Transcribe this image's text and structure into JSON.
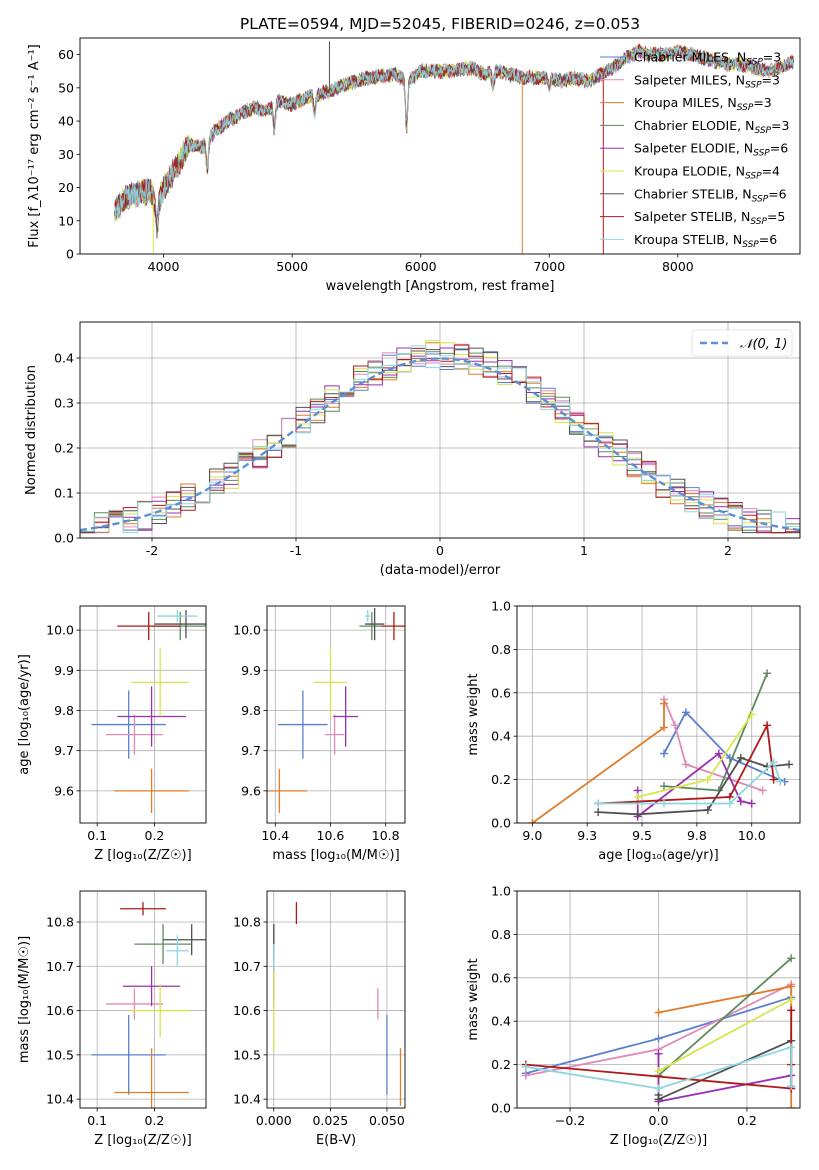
{
  "colors": {
    "Chabrier MILES": "#5a7fd0",
    "Salpeter MILES": "#e08ab8",
    "Kroupa MILES": "#e07d2a",
    "Chabrier ELODIE": "#5d8a5d",
    "Salpeter ELODIE": "#9a2fb0",
    "Kroupa ELODIE": "#d6e64a",
    "Chabrier STELIB": "#505050",
    "Salpeter STELIB": "#b01a1a",
    "Kroupa STELIB": "#8ed6e0"
  },
  "chart_data": [
    {
      "type": "line",
      "title": "PLATE=0594, MJD=52045, FIBERID=0246, z=0.053",
      "xlabel": "wavelength [Angstrom, rest frame]",
      "ylabel": "Flux [f_λ10⁻¹⁷ erg cm⁻² s⁻¹ A⁻¹]",
      "xlim": [
        3350,
        8950
      ],
      "ylim": [
        0,
        65
      ],
      "xticks": [
        4000,
        5000,
        6000,
        7000,
        8000
      ],
      "yticks": [
        0,
        10,
        20,
        30,
        40,
        50,
        60
      ],
      "legend_position": "right",
      "legend": [
        {
          "name": "Chabrier MILES",
          "nssp": "3"
        },
        {
          "name": "Salpeter MILES",
          "nssp": "3"
        },
        {
          "name": "Kroupa MILES",
          "nssp": "3"
        },
        {
          "name": "Chabrier ELODIE",
          "nssp": "3"
        },
        {
          "name": "Salpeter ELODIE",
          "nssp": "6"
        },
        {
          "name": "Kroupa ELODIE",
          "nssp": "4"
        },
        {
          "name": "Chabrier STELIB",
          "nssp": "6"
        },
        {
          "name": "Salpeter STELIB",
          "nssp": "5"
        },
        {
          "name": "Kroupa STELIB",
          "nssp": "6"
        }
      ],
      "spectrum_envelope": {
        "x": [
          3620,
          3700,
          3800,
          3900,
          3950,
          4000,
          4100,
          4200,
          4300,
          4400,
          4500,
          4700,
          4800,
          4900,
          5000,
          5100,
          5200,
          5300,
          5400,
          5600,
          5800,
          5900,
          6000,
          6200,
          6400,
          6500,
          6600,
          6700,
          6800,
          7000,
          7100,
          7200,
          7300,
          7400,
          7500,
          7600,
          7700,
          7800,
          7900,
          8000,
          8100,
          8200,
          8300,
          8400,
          8500,
          8600,
          8700,
          8800,
          8900
        ],
        "y": [
          13,
          17,
          18,
          19,
          14,
          20,
          26,
          33,
          32,
          37,
          40,
          44,
          43,
          46,
          45,
          47,
          48,
          49,
          51,
          53,
          54,
          52,
          55,
          55,
          56,
          54,
          55,
          54,
          53,
          53,
          52,
          53,
          52,
          54,
          56,
          59,
          61,
          60,
          60,
          61,
          60,
          59,
          58,
          57,
          57,
          56,
          55,
          56,
          58
        ]
      },
      "spikes": [
        {
          "x": 3920,
          "y": 0
        },
        {
          "x": 5290,
          "y": 64
        },
        {
          "x": 6790,
          "y": 0
        },
        {
          "x": 7420,
          "y": 0
        }
      ]
    },
    {
      "type": "area",
      "xlabel": "(data-model)/error",
      "ylabel": "Normed distribution",
      "xlim": [
        -2.5,
        2.5
      ],
      "ylim": [
        0,
        0.48
      ],
      "xticks": [
        -2,
        -1,
        0,
        1,
        2
      ],
      "yticks": [
        0.0,
        0.1,
        0.2,
        0.3,
        0.4
      ],
      "legend_label": "𝒩(0, 1)",
      "legend_position": "top-right",
      "bins": {
        "start": -2.5,
        "width": 0.1,
        "count": 50
      }
    },
    {
      "type": "scatter",
      "xlabel": "Z [log₁₀(Z/Z☉)]",
      "ylabel": "age  [log₁₀(age/yr)]",
      "xlim": [
        0.07,
        0.29
      ],
      "ylim": [
        9.52,
        10.06
      ],
      "xticks": [
        0.1,
        0.2
      ],
      "yticks": [
        9.6,
        9.7,
        9.8,
        9.9,
        10.0
      ],
      "points": [
        {
          "series": "Chabrier MILES",
          "x": 0.155,
          "y": 9.765,
          "xerr": 0.065,
          "yerr": 0.085
        },
        {
          "series": "Salpeter MILES",
          "x": 0.165,
          "y": 9.74,
          "xerr": 0.05,
          "yerr": 0.05
        },
        {
          "series": "Kroupa MILES",
          "x": 0.195,
          "y": 9.6,
          "xerr": 0.065,
          "yerr": 0.055
        },
        {
          "series": "Chabrier ELODIE",
          "x": 0.245,
          "y": 10.01,
          "xerr": 0.05,
          "yerr": 0.035
        },
        {
          "series": "Salpeter ELODIE",
          "x": 0.195,
          "y": 9.785,
          "xerr": 0.06,
          "yerr": 0.075
        },
        {
          "series": "Kroupa ELODIE",
          "x": 0.21,
          "y": 9.87,
          "xerr": 0.05,
          "yerr": 0.085
        },
        {
          "series": "Chabrier STELIB",
          "x": 0.255,
          "y": 10.015,
          "xerr": 0.055,
          "yerr": 0.035
        },
        {
          "series": "Salpeter STELIB",
          "x": 0.19,
          "y": 10.01,
          "xerr": 0.055,
          "yerr": 0.035
        },
        {
          "series": "Kroupa STELIB",
          "x": 0.24,
          "y": 10.035,
          "xerr": 0.035,
          "yerr": 0.015
        }
      ]
    },
    {
      "type": "scatter",
      "xlabel": "mass [log₁₀(M/M☉)]",
      "xlim": [
        10.37,
        10.87
      ],
      "ylim": [
        9.52,
        10.06
      ],
      "xticks": [
        10.4,
        10.6,
        10.8
      ],
      "yticks": [
        9.6,
        9.7,
        9.8,
        9.9,
        10.0
      ],
      "points": [
        {
          "series": "Chabrier MILES",
          "x": 10.5,
          "y": 9.765,
          "xerr": 0.09,
          "yerr": 0.085
        },
        {
          "series": "Salpeter MILES",
          "x": 10.615,
          "y": 9.74,
          "xerr": 0.035,
          "yerr": 0.05
        },
        {
          "series": "Kroupa MILES",
          "x": 10.415,
          "y": 9.6,
          "xerr": 0.1,
          "yerr": 0.055
        },
        {
          "series": "Chabrier ELODIE",
          "x": 10.75,
          "y": 10.01,
          "xerr": 0.045,
          "yerr": 0.035
        },
        {
          "series": "Salpeter ELODIE",
          "x": 10.655,
          "y": 9.785,
          "xerr": 0.045,
          "yerr": 0.075
        },
        {
          "series": "Kroupa ELODIE",
          "x": 10.6,
          "y": 9.87,
          "xerr": 0.06,
          "yerr": 0.085
        },
        {
          "series": "Chabrier STELIB",
          "x": 10.76,
          "y": 10.015,
          "xerr": 0.035,
          "yerr": 0.04
        },
        {
          "series": "Salpeter STELIB",
          "x": 10.83,
          "y": 10.01,
          "xerr": 0.045,
          "yerr": 0.035
        },
        {
          "series": "Kroupa STELIB",
          "x": 10.735,
          "y": 10.035,
          "xerr": 0.01,
          "yerr": 0.015
        }
      ]
    },
    {
      "type": "line",
      "xlabel": "age  [log₁₀(age/yr)]",
      "ylabel": "mass weight",
      "xlim": [
        8.93,
        10.22
      ],
      "ylim": [
        0,
        1
      ],
      "xticks": [
        9.0,
        9.25,
        9.5,
        9.75,
        10.0
      ],
      "yticks": [
        0.0,
        0.2,
        0.4,
        0.6,
        0.8,
        1.0
      ],
      "series": [
        {
          "name": "Chabrier MILES",
          "x": [
            9.6,
            9.7,
            9.9,
            10.15
          ],
          "y": [
            0.32,
            0.51,
            0.3,
            0.19
          ]
        },
        {
          "name": "Salpeter MILES",
          "x": [
            9.6,
            9.65,
            9.7,
            10.05
          ],
          "y": [
            0.57,
            0.45,
            0.27,
            0.15
          ]
        },
        {
          "name": "Kroupa MILES",
          "x": [
            9.0,
            9.6,
            9.6
          ],
          "y": [
            0.0,
            0.44,
            0.55
          ]
        },
        {
          "name": "Chabrier ELODIE",
          "x": [
            9.6,
            9.85,
            10.07
          ],
          "y": [
            0.17,
            0.15,
            0.69
          ]
        },
        {
          "name": "Salpeter ELODIE",
          "x": [
            9.48,
            9.48,
            9.85,
            9.95,
            10.0
          ],
          "y": [
            0.15,
            0.03,
            0.32,
            0.1,
            0.09
          ]
        },
        {
          "name": "Kroupa ELODIE",
          "x": [
            9.48,
            9.8,
            10.0
          ],
          "y": [
            0.12,
            0.2,
            0.5
          ]
        },
        {
          "name": "Chabrier STELIB",
          "x": [
            9.3,
            9.48,
            9.8,
            9.95,
            10.07,
            10.17
          ],
          "y": [
            0.05,
            0.04,
            0.06,
            0.3,
            0.26,
            0.27
          ]
        },
        {
          "name": "Salpeter STELIB",
          "x": [
            9.3,
            9.9,
            10.07,
            10.1
          ],
          "y": [
            0.09,
            0.12,
            0.45,
            0.2
          ]
        },
        {
          "name": "Kroupa STELIB",
          "x": [
            9.3,
            9.6,
            9.9,
            10.1,
            10.13
          ],
          "y": [
            0.09,
            0.09,
            0.09,
            0.28,
            0.19
          ]
        }
      ]
    },
    {
      "type": "scatter",
      "xlabel": "Z [log₁₀(Z/Z☉)]",
      "ylabel": "mass [log₁₀(M/M☉)]",
      "xlim": [
        0.07,
        0.29
      ],
      "ylim": [
        10.38,
        10.87
      ],
      "xticks": [
        0.1,
        0.2
      ],
      "yticks": [
        10.4,
        10.5,
        10.6,
        10.7,
        10.8
      ],
      "points": [
        {
          "series": "Chabrier MILES",
          "x": 0.155,
          "y": 10.5,
          "xerr": 0.065,
          "yerr": 0.09
        },
        {
          "series": "Salpeter MILES",
          "x": 0.165,
          "y": 10.615,
          "xerr": 0.05,
          "yerr": 0.035
        },
        {
          "series": "Kroupa MILES",
          "x": 0.195,
          "y": 10.415,
          "xerr": 0.065,
          "yerr": 0.1
        },
        {
          "series": "Chabrier ELODIE",
          "x": 0.215,
          "y": 10.75,
          "xerr": 0.05,
          "yerr": 0.045
        },
        {
          "series": "Salpeter ELODIE",
          "x": 0.195,
          "y": 10.655,
          "xerr": 0.05,
          "yerr": 0.045
        },
        {
          "series": "Kroupa ELODIE",
          "x": 0.21,
          "y": 10.6,
          "xerr": 0.05,
          "yerr": 0.06
        },
        {
          "series": "Chabrier STELIB",
          "x": 0.265,
          "y": 10.76,
          "xerr": 0.05,
          "yerr": 0.035
        },
        {
          "series": "Salpeter STELIB",
          "x": 0.18,
          "y": 10.83,
          "xerr": 0.04,
          "yerr": 0.015
        },
        {
          "series": "Kroupa STELIB",
          "x": 0.24,
          "y": 10.735,
          "xerr": 0.02,
          "yerr": 0.035
        }
      ]
    },
    {
      "type": "scatter",
      "xlabel": "E(B-V)",
      "xlim": [
        -0.003,
        0.058
      ],
      "ylim": [
        10.38,
        10.87
      ],
      "xticks": [
        0.0,
        0.025,
        0.05
      ],
      "xticklabels": [
        "0.000",
        "0.025",
        "0.050"
      ],
      "yticks": [
        10.4,
        10.5,
        10.6,
        10.7,
        10.8
      ],
      "points": [
        {
          "series": "Chabrier MILES",
          "x": 0.05,
          "y": 10.5,
          "xerr": 0,
          "yerr": 0.09
        },
        {
          "series": "Salpeter MILES",
          "x": 0.046,
          "y": 10.615,
          "xerr": 0,
          "yerr": 0.035
        },
        {
          "series": "Kroupa MILES",
          "x": 0.056,
          "y": 10.45,
          "xerr": 0,
          "yerr": 0.065
        },
        {
          "series": "Chabrier ELODIE",
          "x": 0.0,
          "y": 10.75,
          "xerr": 0,
          "yerr": 0.045
        },
        {
          "series": "Salpeter ELODIE",
          "x": 0.0,
          "y": 10.655,
          "xerr": 0,
          "yerr": 0.045
        },
        {
          "series": "Kroupa ELODIE",
          "x": 0.0,
          "y": 10.6,
          "xerr": 0,
          "yerr": 0.09
        },
        {
          "series": "Chabrier STELIB",
          "x": 0.0,
          "y": 10.76,
          "xerr": 0,
          "yerr": 0.035
        },
        {
          "series": "Salpeter STELIB",
          "x": 0.01,
          "y": 10.82,
          "xerr": 0,
          "yerr": 0.025
        },
        {
          "series": "Kroupa STELIB",
          "x": 0.0,
          "y": 10.72,
          "xerr": 0,
          "yerr": 0.03
        }
      ]
    },
    {
      "type": "line",
      "xlabel": "Z [log₁₀(Z/Z☉)]",
      "ylabel": "mass weight",
      "xlim": [
        -0.32,
        0.32
      ],
      "ylim": [
        0,
        1
      ],
      "xticks": [
        -0.2,
        0.0,
        0.2
      ],
      "yticks": [
        0.0,
        0.2,
        0.4,
        0.6,
        0.8,
        1.0
      ],
      "series": [
        {
          "name": "Chabrier MILES",
          "x": [
            -0.3,
            0.0,
            0.3
          ],
          "y": [
            0.16,
            0.32,
            0.51
          ]
        },
        {
          "name": "Salpeter MILES",
          "x": [
            -0.3,
            0.0,
            0.3,
            0.3
          ],
          "y": [
            0.15,
            0.27,
            0.57,
            0.45
          ]
        },
        {
          "name": "Kroupa MILES",
          "x": [
            0.0,
            0.3,
            0.3
          ],
          "y": [
            0.44,
            0.56,
            0.0
          ]
        },
        {
          "name": "Chabrier ELODIE",
          "x": [
            0.0,
            0.3
          ],
          "y": [
            0.15,
            0.69
          ]
        },
        {
          "name": "Salpeter ELODIE",
          "x": [
            0.0,
            0.0,
            0.3,
            0.3
          ],
          "y": [
            0.25,
            0.03,
            0.15,
            0.09
          ]
        },
        {
          "name": "Kroupa ELODIE",
          "x": [
            0.0,
            0.3
          ],
          "y": [
            0.17,
            0.5
          ]
        },
        {
          "name": "Chabrier STELIB",
          "x": [
            0.0,
            0.0,
            0.3,
            0.3
          ],
          "y": [
            0.06,
            0.04,
            0.31,
            0.1
          ]
        },
        {
          "name": "Salpeter STELIB",
          "x": [
            -0.3,
            0.3,
            0.3,
            0.3
          ],
          "y": [
            0.2,
            0.09,
            0.45,
            0.2
          ]
        },
        {
          "name": "Kroupa STELIB",
          "x": [
            -0.3,
            0.0,
            0.3,
            0.3
          ],
          "y": [
            0.19,
            0.09,
            0.28,
            0.1
          ]
        }
      ]
    }
  ]
}
